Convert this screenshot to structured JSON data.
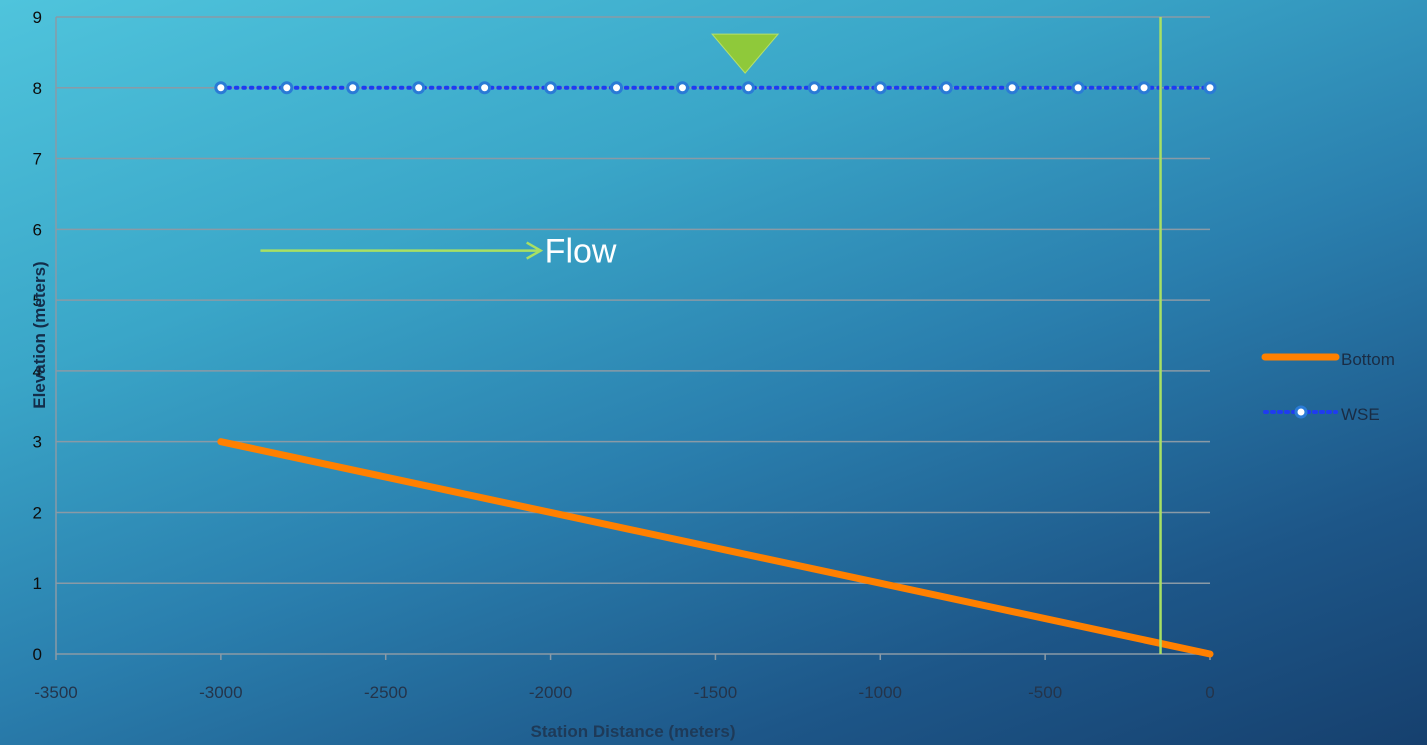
{
  "chart_data": {
    "type": "line",
    "xlabel": "Station Distance (meters)",
    "ylabel": "Elevation (meters)",
    "xlim": [
      -3500,
      0
    ],
    "ylim": [
      0,
      9
    ],
    "xticks": [
      "-3500",
      "-3000",
      "-2500",
      "-2000",
      "-1500",
      "-1000",
      "-500",
      "0"
    ],
    "yticks": [
      "0",
      "1",
      "2",
      "3",
      "4",
      "5",
      "6",
      "7",
      "8",
      "9"
    ],
    "grid": true,
    "legend_position": "right",
    "series": [
      {
        "name": "Bottom",
        "color": "#ff8000",
        "style": "solid",
        "x": [
          -3000,
          -2000,
          -1000,
          0
        ],
        "y": [
          3,
          2,
          1,
          0
        ]
      },
      {
        "name": "WSE",
        "color": "#1f3cf0",
        "style": "dotted-markers",
        "x": [
          -3000,
          -2800,
          -2600,
          -2400,
          -2200,
          -2000,
          -1800,
          -1600,
          -1400,
          -1200,
          -1000,
          -800,
          -600,
          -400,
          -200,
          0
        ],
        "y": [
          8,
          8,
          8,
          8,
          8,
          8,
          8,
          8,
          8,
          8,
          8,
          8,
          8,
          8,
          8,
          8
        ]
      }
    ],
    "annotations": {
      "flow_label": "Flow",
      "flow_arrow": {
        "from_x": -2880,
        "to_x": -2030,
        "y": 5.7
      },
      "water_surface_marker_x": -1410,
      "water_surface_marker_y": 8.25,
      "vertical_line_x": -150,
      "annotation_color": "#a8e063"
    }
  }
}
